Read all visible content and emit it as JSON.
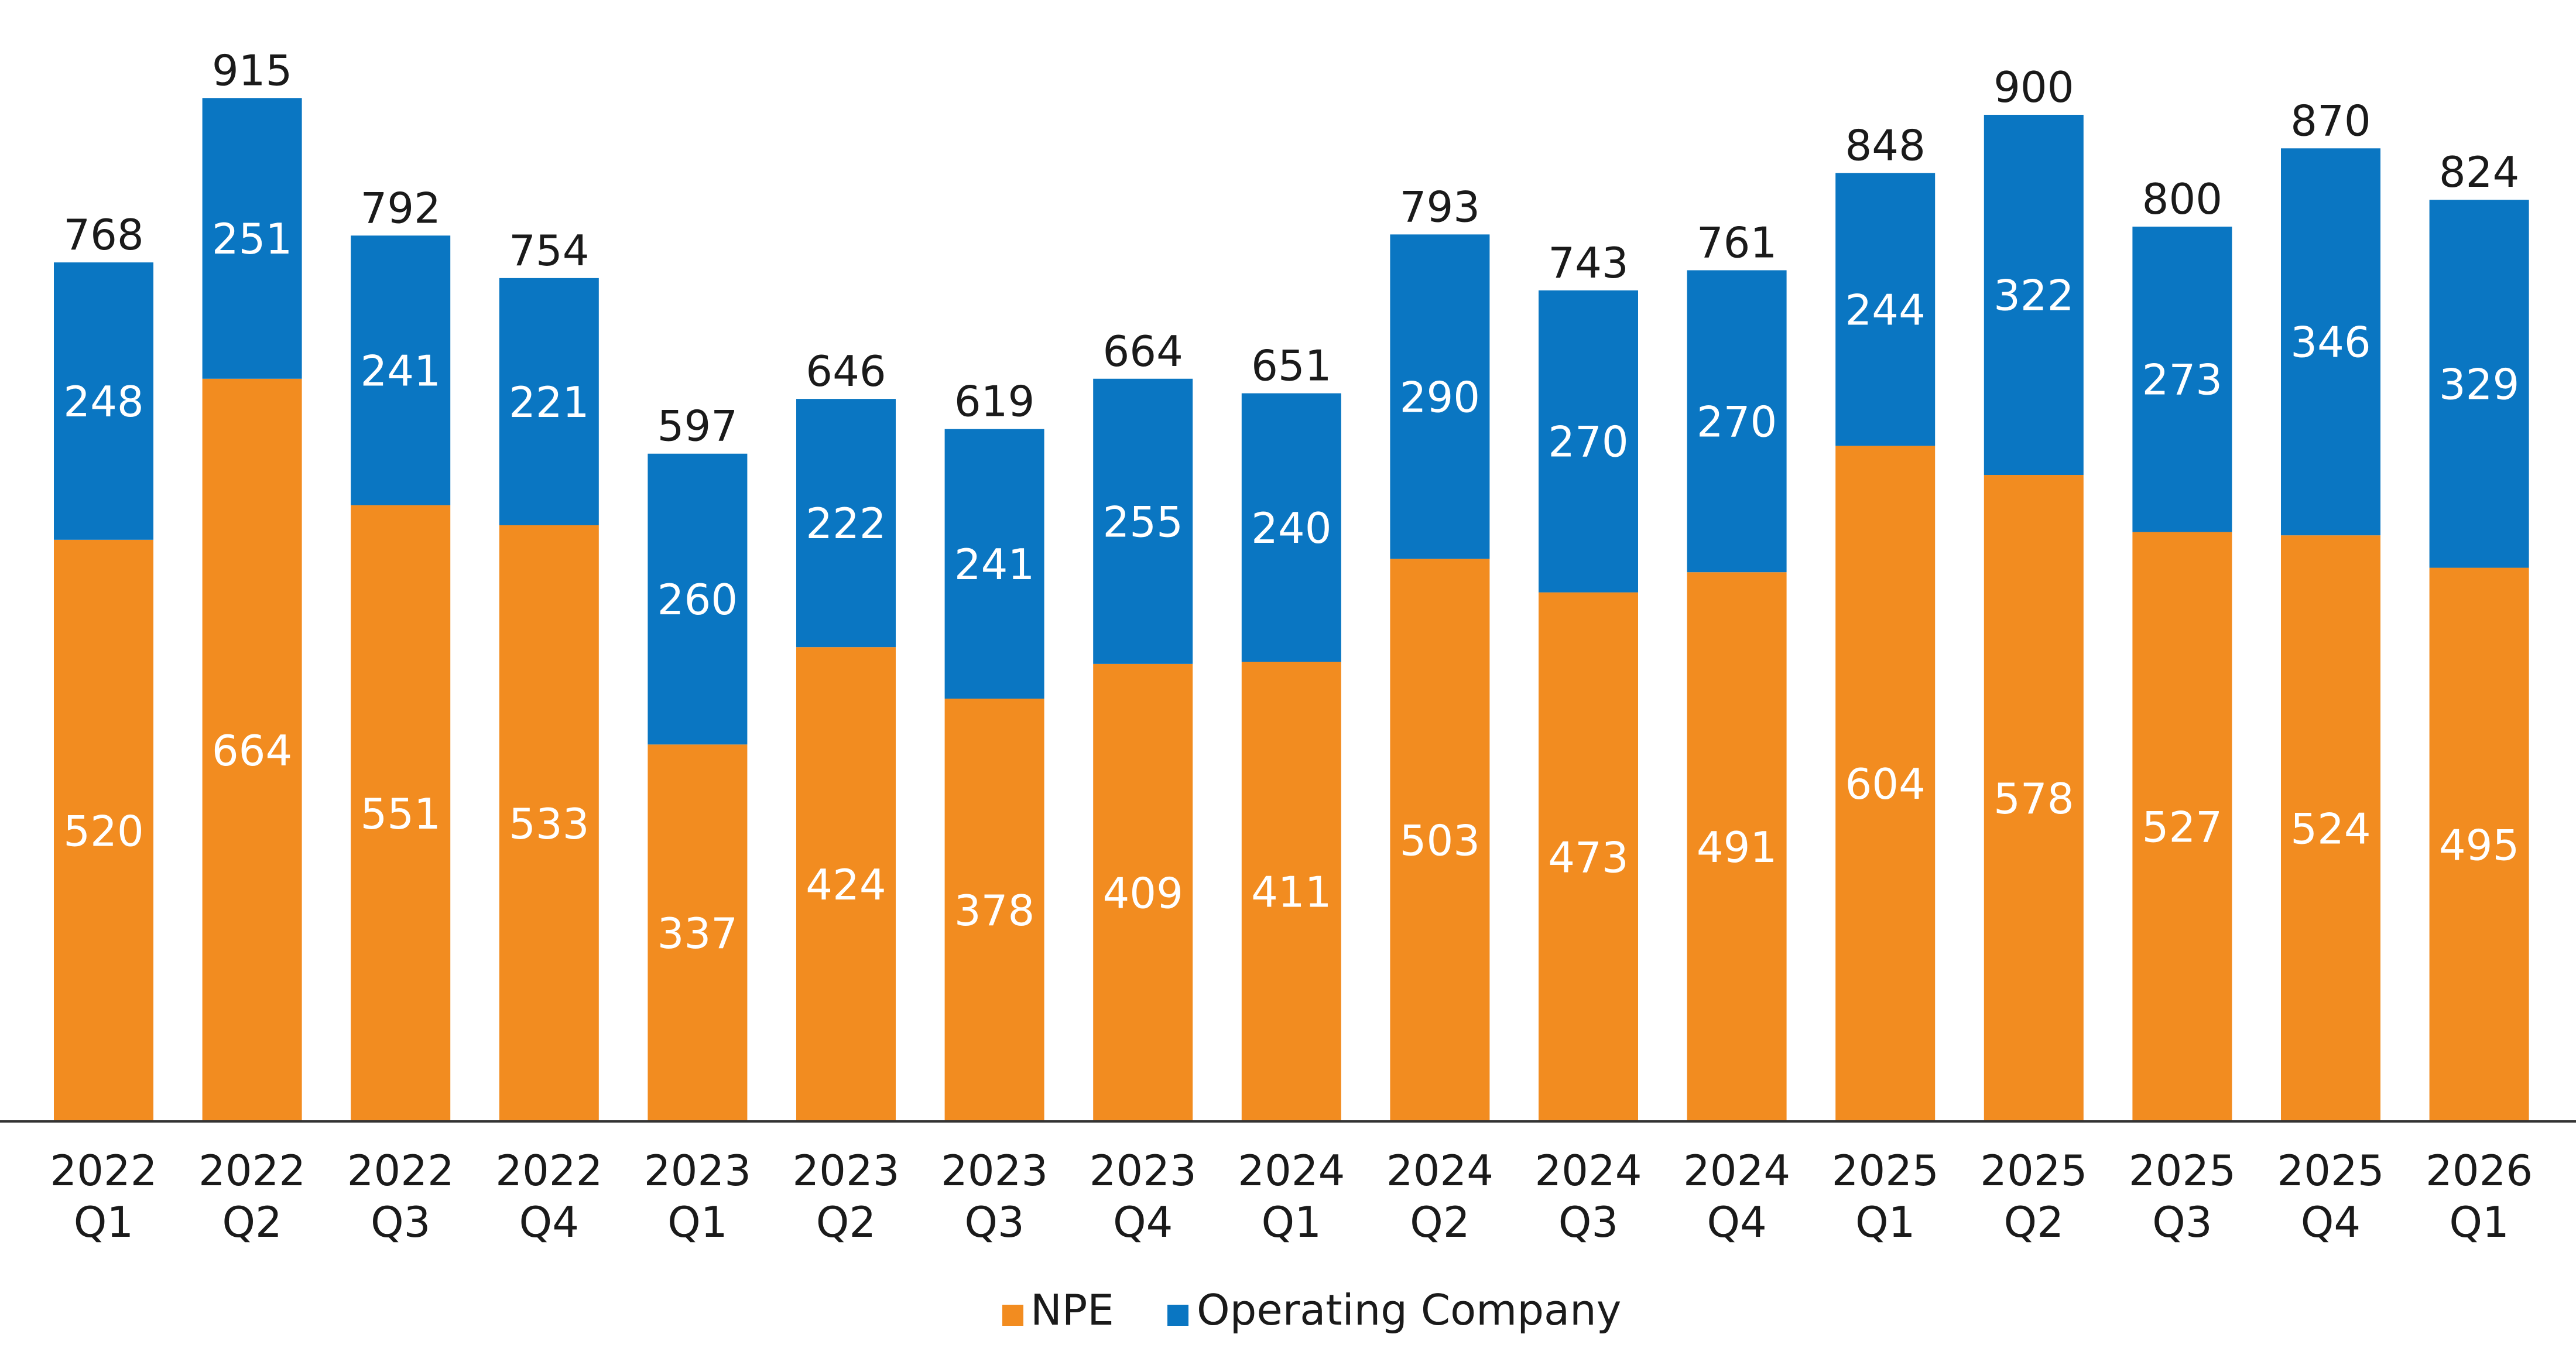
{
  "chart_data": {
    "type": "bar",
    "stacked": true,
    "title": "",
    "xlabel": "",
    "ylabel": "",
    "ylim": [
      0,
      950
    ],
    "grid": false,
    "legend_position": "bottom-center",
    "categories": [
      {
        "year": "2022",
        "quarter": "Q1"
      },
      {
        "year": "2022",
        "quarter": "Q2"
      },
      {
        "year": "2022",
        "quarter": "Q3"
      },
      {
        "year": "2022",
        "quarter": "Q4"
      },
      {
        "year": "2023",
        "quarter": "Q1"
      },
      {
        "year": "2023",
        "quarter": "Q2"
      },
      {
        "year": "2023",
        "quarter": "Q3"
      },
      {
        "year": "2023",
        "quarter": "Q4"
      },
      {
        "year": "2024",
        "quarter": "Q1"
      },
      {
        "year": "2024",
        "quarter": "Q2"
      },
      {
        "year": "2024",
        "quarter": "Q3"
      },
      {
        "year": "2024",
        "quarter": "Q4"
      },
      {
        "year": "2025",
        "quarter": "Q1"
      },
      {
        "year": "2025",
        "quarter": "Q2"
      },
      {
        "year": "2025",
        "quarter": "Q3"
      },
      {
        "year": "2025",
        "quarter": "Q4"
      },
      {
        "year": "2026",
        "quarter": "Q1"
      }
    ],
    "series": [
      {
        "name": "NPE",
        "color": "#f28c20",
        "values": [
          520,
          664,
          551,
          533,
          337,
          424,
          378,
          409,
          411,
          503,
          473,
          491,
          604,
          578,
          527,
          524,
          495
        ]
      },
      {
        "name": "Operating Company",
        "color": "#0a76c2",
        "values": [
          248,
          251,
          241,
          221,
          260,
          222,
          241,
          255,
          240,
          290,
          270,
          270,
          244,
          322,
          273,
          346,
          329
        ]
      }
    ],
    "totals": [
      768,
      915,
      792,
      754,
      597,
      646,
      619,
      664,
      651,
      793,
      743,
      761,
      848,
      900,
      800,
      870,
      824
    ]
  }
}
